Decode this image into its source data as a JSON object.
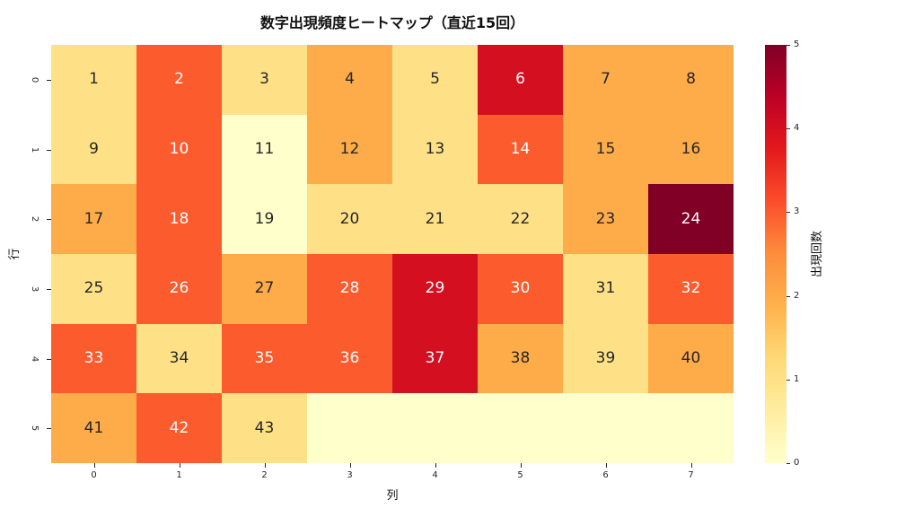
{
  "title": "数字出現頻度ヒートマップ（直近15回）",
  "axes": {
    "x_label": "列",
    "y_label": "行",
    "x_ticks": [
      "0",
      "1",
      "2",
      "3",
      "4",
      "5",
      "6",
      "7"
    ],
    "y_ticks": [
      "0",
      "1",
      "2",
      "3",
      "4",
      "5"
    ]
  },
  "colorbar": {
    "label": "出現回数",
    "ticks": [
      "0",
      "1",
      "2",
      "3",
      "4",
      "5"
    ],
    "min": 0,
    "max": 5,
    "gradient": [
      "#ffffcc",
      "#ffeda0",
      "#fed976",
      "#feb24c",
      "#fd8d3c",
      "#fc4e2a",
      "#e31a1c",
      "#bd0026",
      "#800026"
    ]
  },
  "style": {
    "value_colors": {
      "0": "#ffffcc",
      "1": "#fee187",
      "2": "#feab49",
      "3": "#fc5b2e",
      "4": "#d41020",
      "5": "#800026"
    },
    "annot_dark": "#262626",
    "annot_light": "#ffffff",
    "light_text_threshold": 3
  },
  "chart_data": {
    "type": "heatmap",
    "title": "数字出現頻度ヒートマップ（直近15回）",
    "xlabel": "列",
    "ylabel": "行",
    "colorbar_label": "出現回数",
    "vmin": 0,
    "vmax": 5,
    "row_labels": [
      "0",
      "1",
      "2",
      "3",
      "4",
      "5"
    ],
    "col_labels": [
      "0",
      "1",
      "2",
      "3",
      "4",
      "5",
      "6",
      "7"
    ],
    "cell_labels": [
      [
        "1",
        "2",
        "3",
        "4",
        "5",
        "6",
        "7",
        "8"
      ],
      [
        "9",
        "10",
        "11",
        "12",
        "13",
        "14",
        "15",
        "16"
      ],
      [
        "17",
        "18",
        "19",
        "20",
        "21",
        "22",
        "23",
        "24"
      ],
      [
        "25",
        "26",
        "27",
        "28",
        "29",
        "30",
        "31",
        "32"
      ],
      [
        "33",
        "34",
        "35",
        "36",
        "37",
        "38",
        "39",
        "40"
      ],
      [
        "41",
        "42",
        "43",
        "",
        "",
        "",
        "",
        ""
      ]
    ],
    "values": [
      [
        1,
        3,
        1,
        2,
        1,
        4,
        2,
        2
      ],
      [
        1,
        3,
        0,
        2,
        1,
        3,
        2,
        2
      ],
      [
        2,
        3,
        0,
        1,
        1,
        1,
        2,
        5
      ],
      [
        1,
        3,
        2,
        3,
        4,
        3,
        1,
        3
      ],
      [
        3,
        1,
        3,
        3,
        4,
        2,
        1,
        2
      ],
      [
        2,
        3,
        1,
        0,
        0,
        0,
        0,
        0
      ]
    ]
  }
}
